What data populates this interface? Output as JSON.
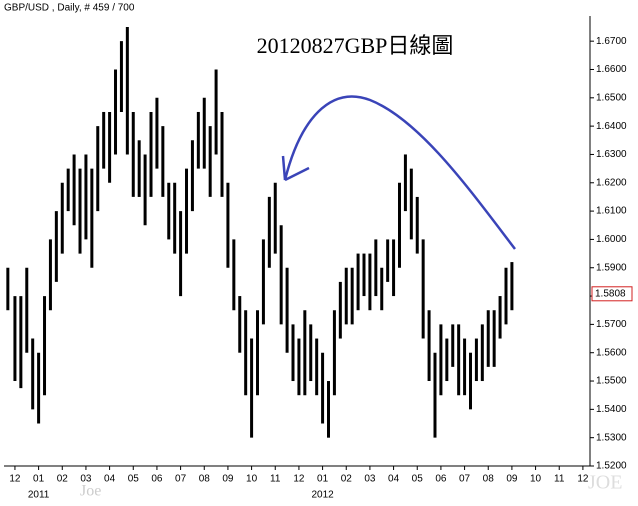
{
  "chart_data": {
    "type": "range-bar",
    "header": "GBP/USD , Daily, # 459 / 700",
    "title": "20120827GBP日線圖",
    "watermark_left": "Joe",
    "watermark_right": "JOE",
    "color": "#000000",
    "annotation_color": "#3a44b8",
    "x": [
      -0.3,
      0,
      0.25,
      0.5,
      0.75,
      1,
      1.25,
      1.5,
      1.75,
      2,
      2.25,
      2.5,
      2.75,
      3,
      3.25,
      3.5,
      3.75,
      4,
      4.25,
      4.5,
      4.75,
      5,
      5.25,
      5.5,
      5.75,
      6,
      6.25,
      6.5,
      6.75,
      7,
      7.25,
      7.5,
      7.75,
      8,
      8.25,
      8.5,
      8.75,
      9,
      9.25,
      9.5,
      9.75,
      10,
      10.25,
      10.5,
      10.75,
      11,
      11.25,
      11.5,
      11.75,
      12,
      12.25,
      12.5,
      12.75,
      13,
      13.25,
      13.5,
      13.75,
      14,
      14.25,
      14.5,
      14.75,
      15,
      15.25,
      15.5,
      15.75,
      16,
      16.25,
      16.5,
      16.75,
      17,
      17.25,
      17.5,
      17.75,
      18,
      18.25,
      18.5,
      18.75,
      19,
      19.25,
      19.5,
      19.75,
      20,
      20.25,
      20.5,
      20.75,
      21
    ],
    "low": [
      1.575,
      1.55,
      1.5475,
      1.56,
      1.54,
      1.535,
      1.545,
      1.575,
      1.585,
      1.595,
      1.61,
      1.605,
      1.595,
      1.6,
      1.59,
      1.61,
      1.625,
      1.62,
      1.63,
      1.645,
      1.63,
      1.615,
      1.615,
      1.605,
      1.615,
      1.625,
      1.615,
      1.6,
      1.595,
      1.58,
      1.595,
      1.61,
      1.625,
      1.625,
      1.615,
      1.63,
      1.615,
      1.59,
      1.575,
      1.56,
      1.545,
      1.53,
      1.545,
      1.57,
      1.59,
      1.595,
      1.57,
      1.56,
      1.55,
      1.545,
      1.545,
      1.55,
      1.545,
      1.535,
      1.53,
      1.545,
      1.565,
      1.57,
      1.57,
      1.575,
      1.58,
      1.575,
      1.58,
      1.575,
      1.585,
      1.58,
      1.59,
      1.61,
      1.6,
      1.595,
      1.565,
      1.55,
      1.53,
      1.545,
      1.55,
      1.555,
      1.545,
      1.545,
      1.54,
      1.55,
      1.55,
      1.555,
      1.555,
      1.565,
      1.57,
      1.575
    ],
    "high": [
      1.59,
      1.58,
      1.58,
      1.59,
      1.565,
      1.56,
      1.58,
      1.6,
      1.61,
      1.62,
      1.625,
      1.63,
      1.625,
      1.63,
      1.625,
      1.64,
      1.645,
      1.645,
      1.66,
      1.67,
      1.675,
      1.645,
      1.635,
      1.63,
      1.645,
      1.65,
      1.64,
      1.62,
      1.62,
      1.61,
      1.625,
      1.635,
      1.645,
      1.65,
      1.64,
      1.66,
      1.645,
      1.62,
      1.6,
      1.58,
      1.575,
      1.565,
      1.575,
      1.6,
      1.615,
      1.62,
      1.605,
      1.59,
      1.57,
      1.565,
      1.575,
      1.57,
      1.565,
      1.56,
      1.55,
      1.575,
      1.585,
      1.59,
      1.59,
      1.595,
      1.595,
      1.595,
      1.6,
      1.59,
      1.6,
      1.6,
      1.62,
      1.63,
      1.625,
      1.615,
      1.6,
      1.575,
      1.56,
      1.57,
      1.565,
      1.57,
      1.57,
      1.565,
      1.56,
      1.565,
      1.57,
      1.575,
      1.575,
      1.58,
      1.59,
      1.592
    ],
    "xlim": [
      -0.42,
      24.3
    ],
    "xticks": [
      {
        "value": 0,
        "label": "12"
      },
      {
        "value": 1,
        "label": "01"
      },
      {
        "value": 2,
        "label": "02"
      },
      {
        "value": 3,
        "label": "03"
      },
      {
        "value": 4,
        "label": "04"
      },
      {
        "value": 5,
        "label": "05"
      },
      {
        "value": 6,
        "label": "06"
      },
      {
        "value": 7,
        "label": "07"
      },
      {
        "value": 8,
        "label": "08"
      },
      {
        "value": 9,
        "label": "09"
      },
      {
        "value": 10,
        "label": "10"
      },
      {
        "value": 11,
        "label": "11"
      },
      {
        "value": 12,
        "label": "12"
      },
      {
        "value": 13,
        "label": "01"
      },
      {
        "value": 14,
        "label": "02"
      },
      {
        "value": 15,
        "label": "03"
      },
      {
        "value": 16,
        "label": "04"
      },
      {
        "value": 17,
        "label": "05"
      },
      {
        "value": 18,
        "label": "06"
      },
      {
        "value": 19,
        "label": "07"
      },
      {
        "value": 20,
        "label": "08"
      },
      {
        "value": 21,
        "label": "09"
      },
      {
        "value": 22,
        "label": "10"
      },
      {
        "value": 23,
        "label": "11"
      },
      {
        "value": 24,
        "label": "12"
      }
    ],
    "year_ticks": [
      {
        "value": 1,
        "label": "2011"
      },
      {
        "value": 13,
        "label": "2012"
      }
    ],
    "ylim": [
      1.52,
      1.675
    ],
    "yticks": [
      {
        "value": 1.52,
        "label": "1.5200"
      },
      {
        "value": 1.53,
        "label": "1.5300"
      },
      {
        "value": 1.54,
        "label": "1.5400"
      },
      {
        "value": 1.55,
        "label": "1.5500"
      },
      {
        "value": 1.56,
        "label": "1.5600"
      },
      {
        "value": 1.57,
        "label": "1.5700"
      },
      {
        "value": 1.58,
        "label": "1.5800"
      },
      {
        "value": 1.59,
        "label": "1.5900"
      },
      {
        "value": 1.6,
        "label": "1.6000"
      },
      {
        "value": 1.61,
        "label": "1.6100"
      },
      {
        "value": 1.62,
        "label": "1.6200"
      },
      {
        "value": 1.63,
        "label": "1.6300"
      },
      {
        "value": 1.64,
        "label": "1.6400"
      },
      {
        "value": 1.65,
        "label": "1.6500"
      },
      {
        "value": 1.66,
        "label": "1.6600"
      },
      {
        "value": 1.67,
        "label": "1.6700"
      }
    ],
    "last_price": {
      "value": 1.5808,
      "label": "1.5808"
    },
    "last_price_color": "#d22020"
  }
}
